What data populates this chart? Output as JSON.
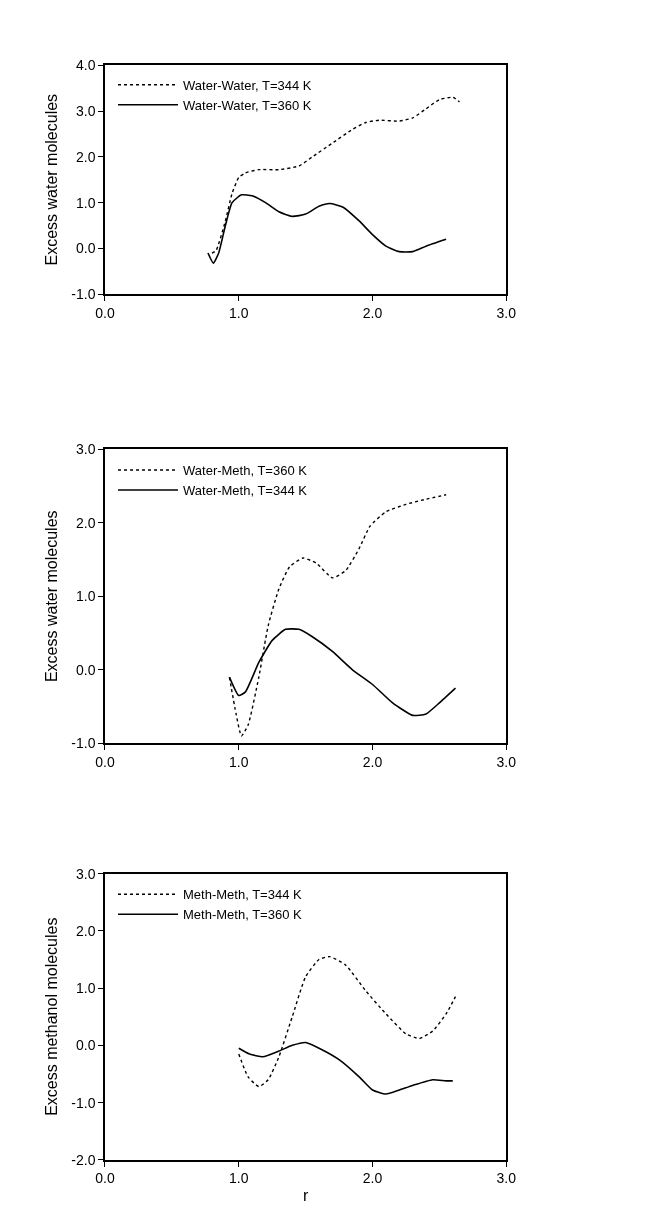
{
  "chart_data": [
    {
      "type": "line",
      "ylabel": "Excess water molecules",
      "xlim": [
        0,
        3
      ],
      "ylim": [
        -1,
        4
      ],
      "xticks": [
        {
          "value": 0,
          "label": "0.0"
        },
        {
          "value": 1,
          "label": "1.0"
        },
        {
          "value": 2,
          "label": "2.0"
        },
        {
          "value": 3,
          "label": "3.0"
        }
      ],
      "yticks": [
        {
          "value": -1,
          "label": "-1.0"
        },
        {
          "value": 0,
          "label": "0.0"
        },
        {
          "value": 1,
          "label": "1.0"
        },
        {
          "value": 2,
          "label": "2.0"
        },
        {
          "value": 3,
          "label": "3.0"
        },
        {
          "value": 4,
          "label": "4.0"
        }
      ],
      "legend": "top left",
      "series": [
        {
          "name": "Water-Water, T=344 K",
          "color": "#000000",
          "line_style": "dotted",
          "x": [
            0.8,
            0.83,
            0.9,
            0.95,
            1.0,
            1.05,
            1.15,
            1.3,
            1.45,
            1.55,
            1.7,
            1.85,
            1.95,
            2.05,
            2.2,
            2.3,
            2.4,
            2.5,
            2.6,
            2.65
          ],
          "values": [
            -0.1,
            -0.05,
            0.6,
            1.2,
            1.55,
            1.65,
            1.72,
            1.72,
            1.8,
            2.0,
            2.3,
            2.6,
            2.75,
            2.8,
            2.78,
            2.85,
            3.05,
            3.25,
            3.3,
            3.2
          ]
        },
        {
          "name": "Water-Water, T=360 K",
          "color": "#000000",
          "line_style": "solid",
          "x": [
            0.77,
            0.81,
            0.85,
            0.9,
            0.95,
            1.02,
            1.1,
            1.2,
            1.3,
            1.4,
            1.5,
            1.6,
            1.68,
            1.78,
            1.9,
            2.0,
            2.1,
            2.2,
            2.3,
            2.4,
            2.55
          ],
          "values": [
            -0.1,
            -0.32,
            -0.1,
            0.5,
            1.0,
            1.17,
            1.15,
            1.0,
            0.8,
            0.7,
            0.75,
            0.92,
            0.98,
            0.9,
            0.6,
            0.3,
            0.05,
            -0.07,
            -0.07,
            0.05,
            0.2
          ]
        }
      ]
    },
    {
      "type": "line",
      "ylabel": "Excess water molecules",
      "xlim": [
        0,
        3
      ],
      "ylim": [
        -1,
        3
      ],
      "xticks": [
        {
          "value": 0,
          "label": "0.0"
        },
        {
          "value": 1,
          "label": "1.0"
        },
        {
          "value": 2,
          "label": "2.0"
        },
        {
          "value": 3,
          "label": "3.0"
        }
      ],
      "yticks": [
        {
          "value": -1,
          "label": "-1.0"
        },
        {
          "value": 0,
          "label": "0.0"
        },
        {
          "value": 1,
          "label": "1.0"
        },
        {
          "value": 2,
          "label": "2.0"
        },
        {
          "value": 3,
          "label": "3.0"
        }
      ],
      "legend": "top left",
      "series": [
        {
          "name": "Water-Meth, T=360 K",
          "color": "#000000",
          "line_style": "dotted",
          "x": [
            0.93,
            0.98,
            1.02,
            1.07,
            1.15,
            1.22,
            1.3,
            1.38,
            1.48,
            1.58,
            1.7,
            1.8,
            1.9,
            1.98,
            2.1,
            2.25,
            2.4,
            2.55
          ],
          "values": [
            -0.1,
            -0.6,
            -0.9,
            -0.75,
            -0.1,
            0.6,
            1.1,
            1.4,
            1.52,
            1.45,
            1.25,
            1.35,
            1.65,
            1.95,
            2.15,
            2.25,
            2.32,
            2.38
          ]
        },
        {
          "name": "Water-Meth, T=344 K",
          "color": "#000000",
          "line_style": "solid",
          "x": [
            0.93,
            1.0,
            1.05,
            1.15,
            1.25,
            1.35,
            1.45,
            1.55,
            1.7,
            1.85,
            2.0,
            2.15,
            2.3,
            2.4,
            2.5,
            2.62
          ],
          "values": [
            -0.1,
            -0.35,
            -0.3,
            0.1,
            0.4,
            0.55,
            0.55,
            0.45,
            0.25,
            0.0,
            -0.2,
            -0.45,
            -0.62,
            -0.6,
            -0.45,
            -0.25
          ]
        }
      ]
    },
    {
      "type": "line",
      "ylabel": "Excess methanol molecules",
      "xlabel": "r",
      "xlim": [
        0,
        3
      ],
      "ylim": [
        -2,
        3
      ],
      "xticks": [
        {
          "value": 0,
          "label": "0.0"
        },
        {
          "value": 1,
          "label": "1.0"
        },
        {
          "value": 2,
          "label": "2.0"
        },
        {
          "value": 3,
          "label": "3.0"
        }
      ],
      "yticks": [
        {
          "value": -2,
          "label": "-2.0"
        },
        {
          "value": -1,
          "label": "-1.0"
        },
        {
          "value": 0,
          "label": "0.0"
        },
        {
          "value": 1,
          "label": "1.0"
        },
        {
          "value": 2,
          "label": "2.0"
        },
        {
          "value": 3,
          "label": "3.0"
        }
      ],
      "legend": "top left",
      "series": [
        {
          "name": "Meth-Meth, T=344 K",
          "color": "#000000",
          "line_style": "dotted",
          "x": [
            1.0,
            1.07,
            1.15,
            1.22,
            1.3,
            1.4,
            1.5,
            1.6,
            1.68,
            1.8,
            1.95,
            2.1,
            2.25,
            2.35,
            2.45,
            2.55,
            2.62
          ],
          "values": [
            -0.15,
            -0.55,
            -0.72,
            -0.6,
            -0.2,
            0.5,
            1.2,
            1.5,
            1.55,
            1.4,
            0.95,
            0.55,
            0.2,
            0.12,
            0.25,
            0.55,
            0.85
          ]
        },
        {
          "name": "Meth-Meth, T=360 K",
          "color": "#000000",
          "line_style": "solid",
          "x": [
            1.0,
            1.08,
            1.18,
            1.3,
            1.4,
            1.5,
            1.6,
            1.75,
            1.9,
            2.0,
            2.1,
            2.2,
            2.3,
            2.45,
            2.55,
            2.6
          ],
          "values": [
            -0.05,
            -0.15,
            -0.2,
            -0.1,
            0.0,
            0.05,
            -0.05,
            -0.25,
            -0.55,
            -0.78,
            -0.85,
            -0.78,
            -0.7,
            -0.6,
            -0.62,
            -0.62
          ]
        }
      ]
    }
  ]
}
